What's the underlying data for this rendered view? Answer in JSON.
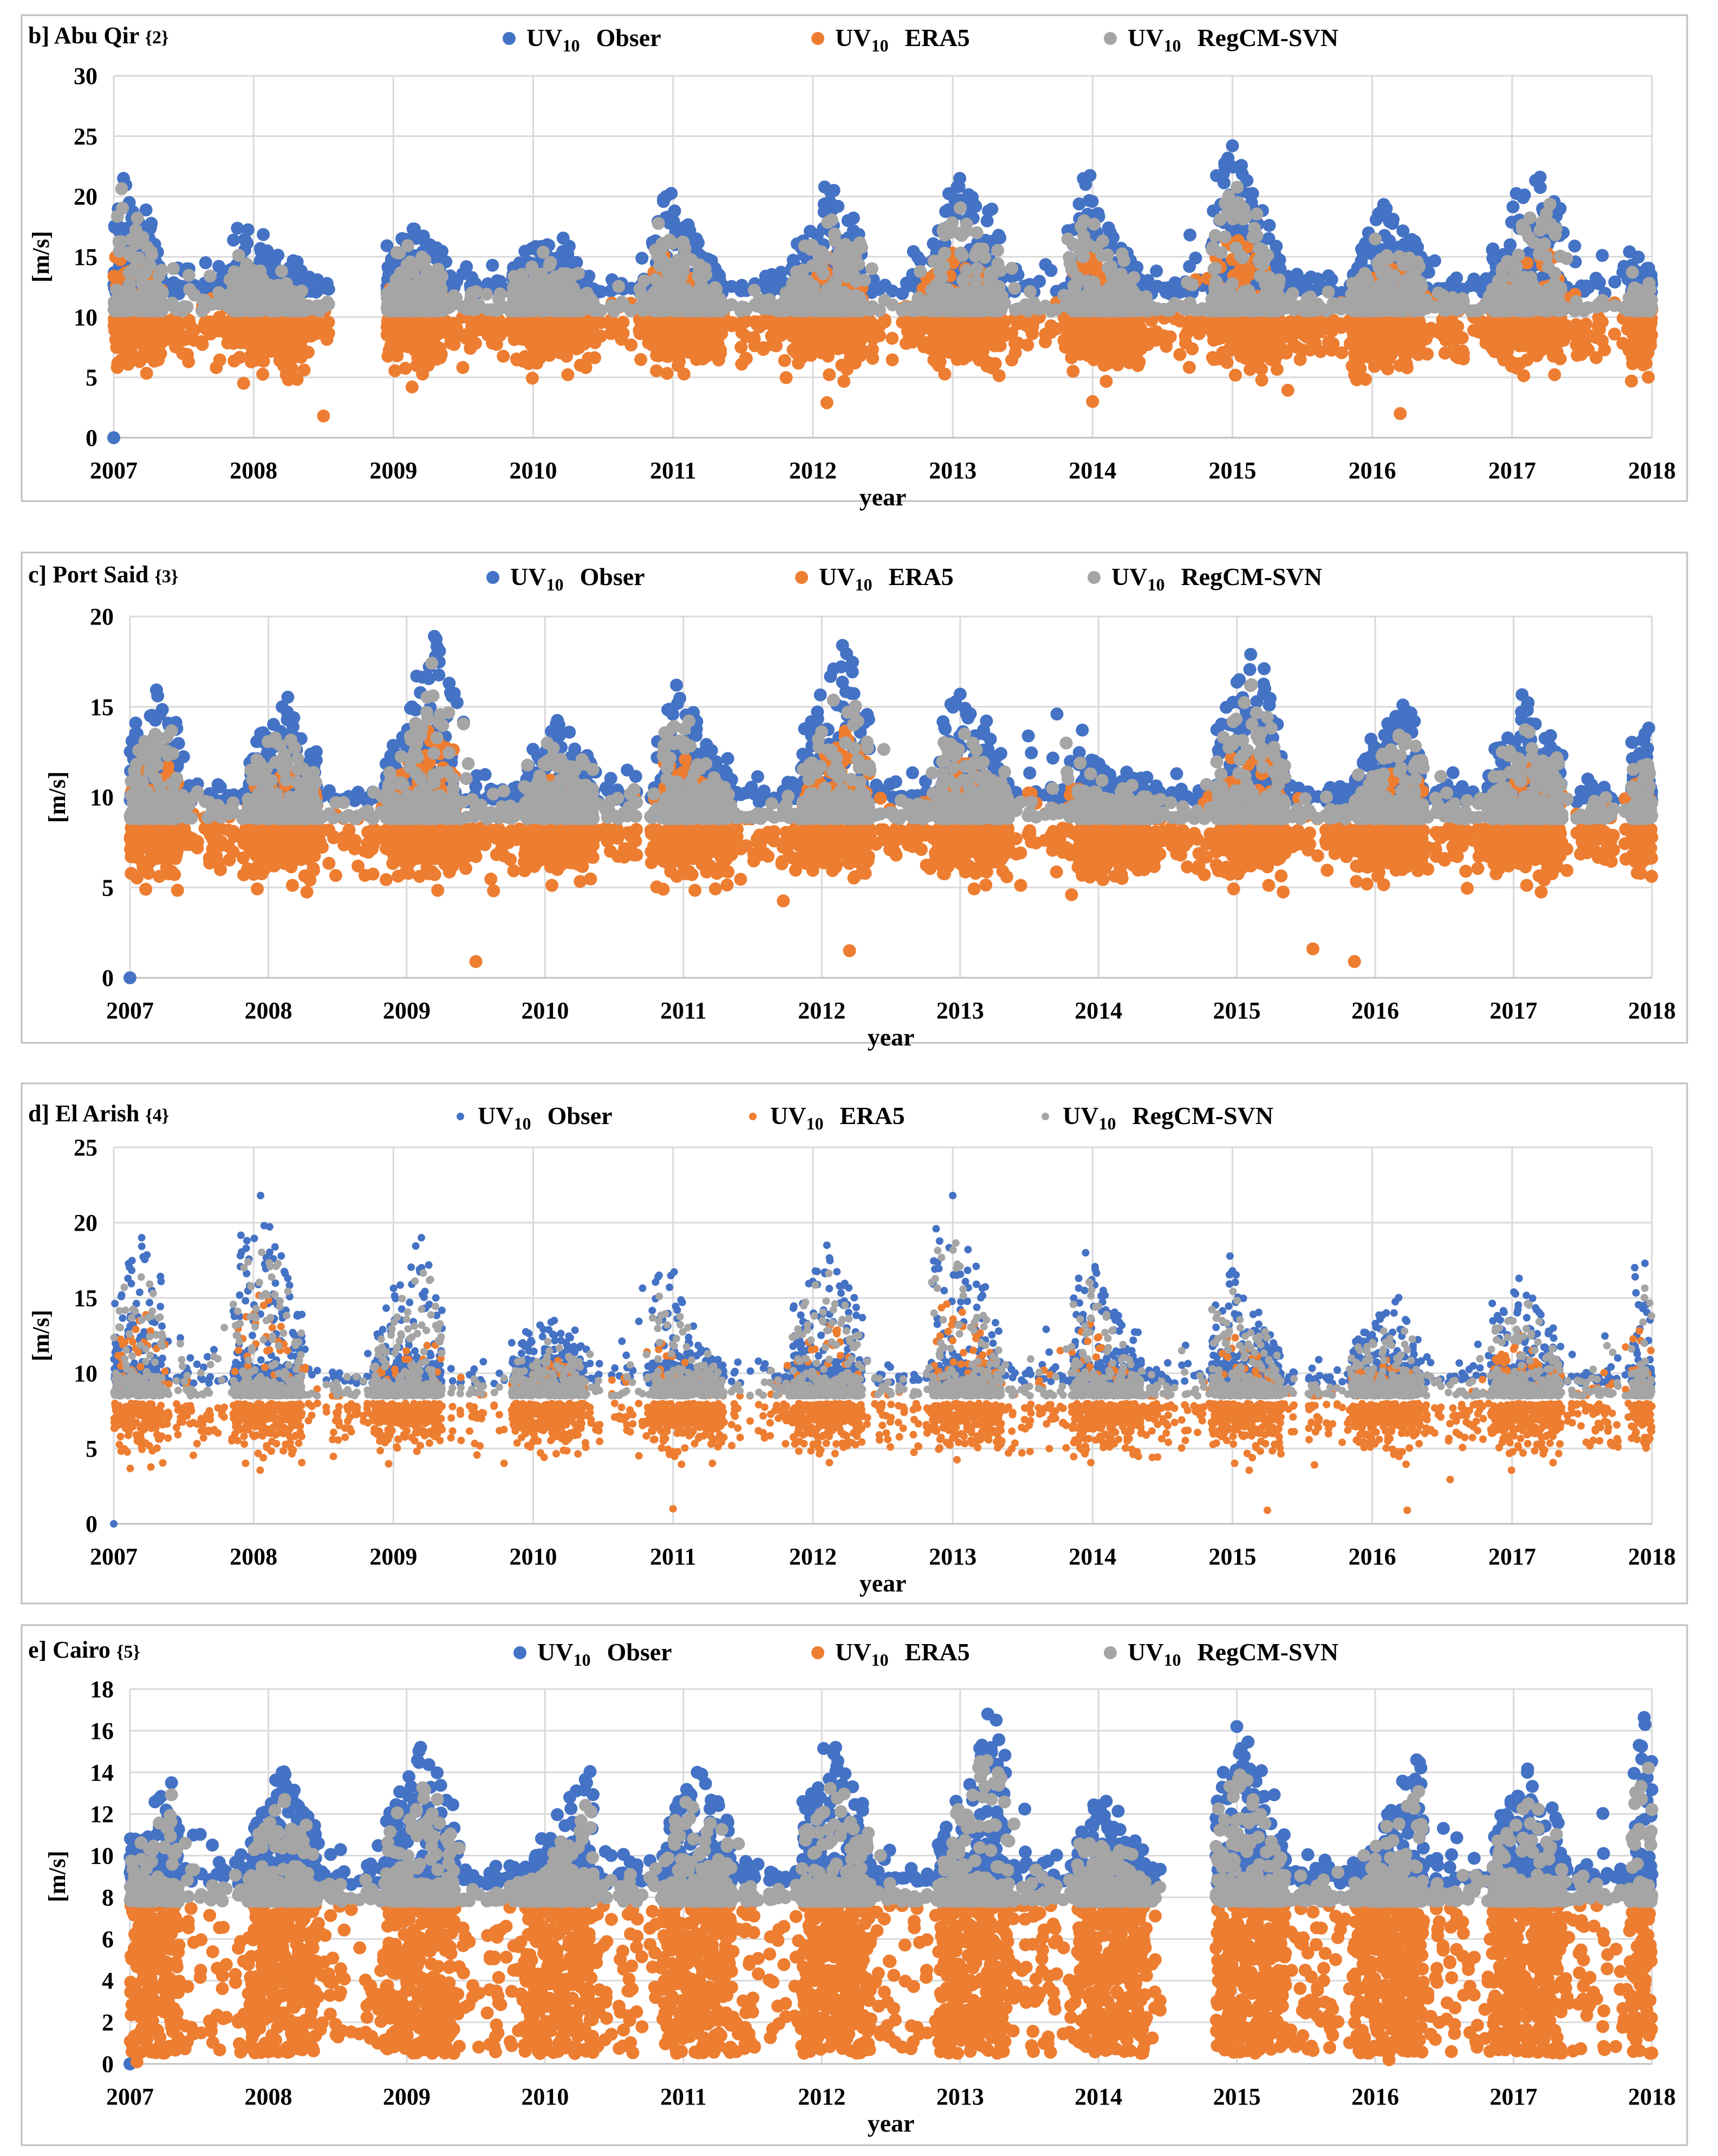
{
  "chart_data": [
    {
      "type": "scatter",
      "panel": "b]",
      "title": "Abu Qir",
      "station_id": "{2}",
      "xlabel": "year",
      "ylabel": "[m/s]",
      "xlim": [
        2007,
        2018
      ],
      "ylim": [
        0,
        30
      ],
      "yticks": [
        0,
        5,
        10,
        15,
        20,
        25,
        30
      ],
      "xticks": [
        2007,
        2008,
        2009,
        2010,
        2011,
        2012,
        2013,
        2014,
        2015,
        2016,
        2017,
        2018
      ],
      "observed_base": 11.9,
      "model_base": 10.5,
      "series": [
        {
          "name": "Obser",
          "prefix": "UV",
          "sub": "10",
          "color": "#4472C4"
        },
        {
          "name": "ERA5",
          "prefix": "UV",
          "sub": "10",
          "color": "#ED7D31"
        },
        {
          "name": "RegCM-SVN",
          "prefix": "UV",
          "sub": "10",
          "color": "#A5A5A5"
        }
      ],
      "gaps": [
        [
          2008.55,
          2008.95
        ],
        [
          2018.02,
          2018.1
        ]
      ],
      "peaks": [
        {
          "x": 2007.07,
          "y": 21.5
        },
        {
          "x": 2007.95,
          "y": 16.2
        },
        {
          "x": 2009.15,
          "y": 17.3
        },
        {
          "x": 2010.1,
          "y": 16.0
        },
        {
          "x": 2010.95,
          "y": 20.0
        },
        {
          "x": 2012.15,
          "y": 20.5
        },
        {
          "x": 2013.05,
          "y": 21.5
        },
        {
          "x": 2013.95,
          "y": 21.0
        },
        {
          "x": 2015.0,
          "y": 24.2
        },
        {
          "x": 2016.1,
          "y": 19.0
        },
        {
          "x": 2017.2,
          "y": 21.6
        },
        {
          "x": 2017.8,
          "y": 14.2
        }
      ],
      "era5_peaks": [
        {
          "x": 2008.5,
          "y": 1.8
        },
        {
          "x": 2012.1,
          "y": 2.9
        },
        {
          "x": 2014.0,
          "y": 3.0
        },
        {
          "x": 2016.2,
          "y": 2.0
        }
      ]
    },
    {
      "type": "scatter",
      "panel": "c]",
      "title": "Port Said",
      "station_id": "{3}",
      "xlabel": "year",
      "ylabel": "[m/s]",
      "xlim": [
        2007,
        2018
      ],
      "ylim": [
        0,
        20
      ],
      "yticks": [
        0,
        5,
        10,
        15,
        20
      ],
      "xticks": [
        2007,
        2008,
        2009,
        2010,
        2011,
        2012,
        2013,
        2014,
        2015,
        2016,
        2017,
        2018
      ],
      "observed_base": 9.7,
      "model_base": 8.8,
      "series": [
        {
          "name": "Obser",
          "prefix": "UV",
          "sub": "10",
          "color": "#4472C4"
        },
        {
          "name": "ERA5",
          "prefix": "UV",
          "sub": "10",
          "color": "#ED7D31"
        },
        {
          "name": "RegCM-SVN",
          "prefix": "UV",
          "sub": "10",
          "color": "#A5A5A5"
        }
      ],
      "gaps": [],
      "peaks": [
        {
          "x": 2007.2,
          "y": 15.6
        },
        {
          "x": 2008.1,
          "y": 15.0
        },
        {
          "x": 2009.2,
          "y": 18.9
        },
        {
          "x": 2010.1,
          "y": 14.0
        },
        {
          "x": 2010.95,
          "y": 16.2
        },
        {
          "x": 2012.15,
          "y": 18.4
        },
        {
          "x": 2013.0,
          "y": 15.7
        },
        {
          "x": 2013.7,
          "y": 14.6
        },
        {
          "x": 2015.1,
          "y": 17.9
        },
        {
          "x": 2016.2,
          "y": 15.1
        },
        {
          "x": 2017.1,
          "y": 15.1
        },
        {
          "x": 2017.95,
          "y": 13.5
        }
      ],
      "era5_peaks": [
        {
          "x": 2009.5,
          "y": 0.9
        },
        {
          "x": 2012.2,
          "y": 1.5
        },
        {
          "x": 2015.55,
          "y": 1.6
        },
        {
          "x": 2015.85,
          "y": 0.9
        }
      ]
    },
    {
      "type": "scatter",
      "panel": "d]",
      "title": "El Arish",
      "station_id": "{4}",
      "xlabel": "year",
      "ylabel": "[m/s]",
      "xlim": [
        2007,
        2018
      ],
      "ylim": [
        0,
        25
      ],
      "yticks": [
        0,
        5,
        10,
        15,
        20,
        25
      ],
      "xticks": [
        2007,
        2008,
        2009,
        2010,
        2011,
        2012,
        2013,
        2014,
        2015,
        2016,
        2017,
        2018
      ],
      "observed_base": 9.3,
      "model_base": 8.5,
      "series": [
        {
          "name": "Obser",
          "prefix": "UV",
          "sub": "10",
          "color": "#4472C4"
        },
        {
          "name": "ERA5",
          "prefix": "UV",
          "sub": "10",
          "color": "#ED7D31"
        },
        {
          "name": "RegCM-SVN",
          "prefix": "UV",
          "sub": "10",
          "color": "#A5A5A5"
        }
      ],
      "gaps": [],
      "peaks": [
        {
          "x": 2007.2,
          "y": 19.0
        },
        {
          "x": 2008.05,
          "y": 21.8
        },
        {
          "x": 2009.2,
          "y": 19.0
        },
        {
          "x": 2010.15,
          "y": 13.5
        },
        {
          "x": 2010.9,
          "y": 16.5
        },
        {
          "x": 2012.1,
          "y": 18.5
        },
        {
          "x": 2013.0,
          "y": 21.8
        },
        {
          "x": 2013.95,
          "y": 18.0
        },
        {
          "x": 2015.0,
          "y": 16.8
        },
        {
          "x": 2016.1,
          "y": 14.0
        },
        {
          "x": 2017.05,
          "y": 16.3
        },
        {
          "x": 2017.95,
          "y": 17.3
        }
      ],
      "era5_peaks": [
        {
          "x": 2011.0,
          "y": 1.0
        },
        {
          "x": 2015.25,
          "y": 0.9
        },
        {
          "x": 2016.25,
          "y": 0.9
        }
      ]
    },
    {
      "type": "scatter",
      "panel": "e]",
      "title": "Cairo",
      "station_id": "{5}",
      "xlabel": "year",
      "ylabel": "[m/s]",
      "xlim": [
        2007,
        2018
      ],
      "ylim": [
        0,
        18
      ],
      "yticks": [
        0,
        2,
        4,
        6,
        8,
        10,
        12,
        14,
        16,
        18
      ],
      "xticks": [
        2007,
        2008,
        2009,
        2010,
        2011,
        2012,
        2013,
        2014,
        2015,
        2016,
        2017,
        2018
      ],
      "observed_base": 8.6,
      "model_base": 7.8,
      "series": [
        {
          "name": "Obser",
          "prefix": "UV",
          "sub": "10",
          "color": "#4472C4"
        },
        {
          "name": "ERA5",
          "prefix": "UV",
          "sub": "10",
          "color": "#ED7D31"
        },
        {
          "name": "RegCM-SVN",
          "prefix": "UV",
          "sub": "10",
          "color": "#A5A5A5"
        }
      ],
      "gaps": [
        [
          2014.45,
          2014.85
        ]
      ],
      "peaks": [
        {
          "x": 2007.3,
          "y": 13.5
        },
        {
          "x": 2008.1,
          "y": 14.0
        },
        {
          "x": 2009.1,
          "y": 15.2
        },
        {
          "x": 2010.3,
          "y": 13.5
        },
        {
          "x": 2011.1,
          "y": 14.0
        },
        {
          "x": 2012.1,
          "y": 15.2
        },
        {
          "x": 2013.2,
          "y": 16.8
        },
        {
          "x": 2014.0,
          "y": 12.4
        },
        {
          "x": 2015.0,
          "y": 16.2
        },
        {
          "x": 2016.3,
          "y": 14.6
        },
        {
          "x": 2017.1,
          "y": 14.0
        },
        {
          "x": 2017.95,
          "y": 16.3
        }
      ],
      "era5_peaks": [
        {
          "x": 2007.05,
          "y": 0.1
        },
        {
          "x": 2016.1,
          "y": 0.2
        }
      ]
    }
  ]
}
